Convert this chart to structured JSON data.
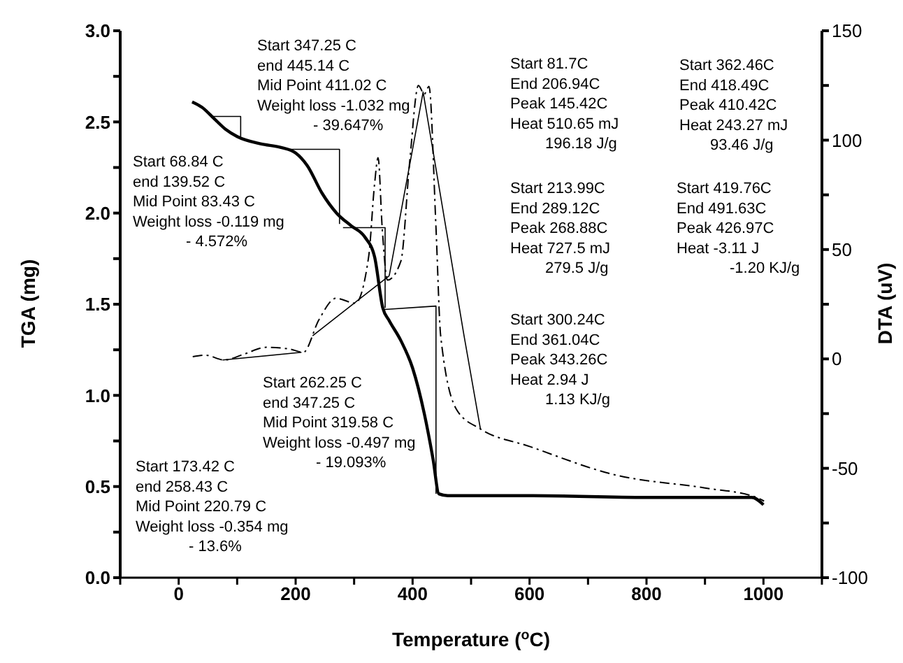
{
  "chart_data": {
    "type": "line",
    "xlabel": "Temperature ($^{o}$C)",
    "ylabel": "TGA (mg)",
    "y2label": "DTA (uV)",
    "xlim": [
      -100,
      1100
    ],
    "xticks": [
      {
        "value": -100,
        "label": null
      },
      0,
      {
        "value": 100,
        "label": null
      },
      200,
      {
        "value": 300,
        "label": null
      },
      400,
      {
        "value": 500,
        "label": null
      },
      600,
      {
        "value": 700,
        "label": null
      },
      800,
      {
        "value": 900,
        "label": null
      },
      1000,
      {
        "value": 1100,
        "label": null
      }
    ],
    "ylim": [
      0,
      3
    ],
    "yticks": [
      {
        "value": 0,
        "label": "0.0"
      },
      {
        "value": 0.25,
        "label": null
      },
      0.5,
      {
        "value": 0.75,
        "label": null
      },
      {
        "value": 1,
        "label": "1.0"
      },
      {
        "value": 1.25,
        "label": null
      },
      1.5,
      {
        "value": 1.75,
        "label": null
      },
      {
        "value": 2,
        "label": "2.0"
      },
      {
        "value": 2.25,
        "label": null
      },
      2.5,
      {
        "value": 2.75,
        "label": null
      },
      {
        "value": 3,
        "label": "3.0"
      }
    ],
    "y2lim": [
      -100,
      150
    ],
    "y2ticks": [
      -100,
      {
        "value": -75,
        "label": null
      },
      -50,
      {
        "value": -25,
        "label": null
      },
      0,
      {
        "value": 25,
        "label": null
      },
      50,
      {
        "value": 75,
        "label": null
      },
      100,
      {
        "value": 125,
        "label": null
      },
      150
    ],
    "marker": "none",
    "series": [
      {
        "color": "#000000",
        "x": [
          23,
          40,
          60,
          80,
          100,
          140,
          175,
          200,
          220,
          245,
          270,
          295,
          318,
          335,
          349,
          360,
          380,
          400,
          420,
          435,
          445,
          460,
          600,
          800,
          980,
          1000
        ],
        "values": [
          2.61,
          2.58,
          2.52,
          2.46,
          2.42,
          2.38,
          2.36,
          2.33,
          2.26,
          2.11,
          2.0,
          1.93,
          1.87,
          1.76,
          1.48,
          1.41,
          1.3,
          1.15,
          0.9,
          0.65,
          0.46,
          0.45,
          0.45,
          0.44,
          0.44,
          0.4
        ]
      },
      {
        "color": "#000000",
        "axis": "y2",
        "line_style": "dashed",
        "x": [
          24,
          46,
          78,
          110,
          150,
          190,
          213,
          240,
          269,
          302,
          325,
          335,
          341,
          348,
          357,
          380,
          395,
          410,
          420,
          428,
          440,
          448,
          476,
          516,
          600,
          746,
          900,
          985,
          1001
        ],
        "values": [
          1,
          1.7,
          -0.5,
          2,
          5.3,
          4.5,
          3,
          18,
          27.7,
          25.5,
          47,
          80,
          92,
          60,
          36,
          44.7,
          90,
          125,
          121,
          124.6,
          60,
          10.6,
          -23.5,
          -32,
          -40,
          -53,
          -59,
          -63,
          -65
        ]
      },
      {
        "color": "#000000",
        "x": [
          58,
          106,
          106
        ],
        "values": [
          2.53,
          2.53,
          2.42
        ]
      },
      {
        "color": "#000000",
        "x": [
          189,
          275,
          275
        ],
        "values": [
          2.35,
          2.35,
          1.94
        ]
      },
      {
        "color": "#000000",
        "x": [
          281,
          353,
          353
        ],
        "values": [
          1.92,
          1.92,
          1.48
        ]
      },
      {
        "color": "#000000",
        "x": [
          348,
          440,
          440
        ],
        "values": [
          1.47,
          1.49,
          0.46
        ]
      },
      {
        "color": "#000000",
        "axis": "y2",
        "x": [
          75,
          210
        ],
        "values": [
          -0.5,
          3
        ]
      },
      {
        "color": "#000000",
        "axis": "y2",
        "x": [
          229,
          360
        ],
        "values": [
          10.6,
          38
        ]
      },
      {
        "color": "#000000",
        "axis": "y2",
        "x": [
          360,
          418,
          488,
          516
        ],
        "values": [
          38,
          122,
          10.6,
          -32
        ]
      }
    ],
    "annotations": [
      "Start 347.25 C\nend 445.14 C\nMid Point 411.02 C\nWeight loss -1.032 mg\n- 39.647%",
      "Start 81.7C\nEnd 206.94C\nPeak 145.42C\nHeat 510.65 mJ\n196.18 J/g",
      "Start 362.46C\nEnd 418.49C\nPeak 410.42C\nHeat 243.27 mJ\n93.46 J/g",
      "Start 68.84 C\nend 139.52 C\nMid Point 83.43 C\nWeight loss -0.119 mg\n- 4.572%",
      "Start 213.99C\nEnd 289.12C\nPeak 268.88C\nHeat 727.5 mJ\n279.5 J/g",
      "Start 419.76C\nEnd 491.63C\nPeak 426.97C\nHeat -3.11 J\n-1.20 KJ/g",
      "Start 300.24C\nEnd 361.04C\nPeak 343.26C\nHeat 2.94 J\n1.13 KJ/g",
      "Start 262.25 C\nend 347.25 C\nMid Point 319.58 C\nWeight loss -0.497 mg\n- 19.093%",
      "Start 173.42 C\nend 258.43 C\nMid Point 220.79 C\nWeight loss -0.354 mg\n- 13.6%"
    ]
  }
}
